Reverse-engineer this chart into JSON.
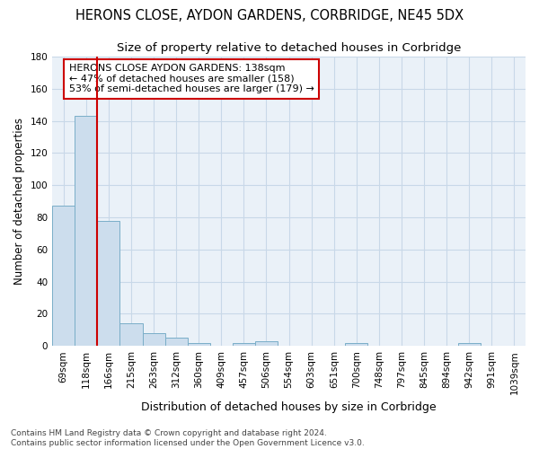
{
  "title": "HERONS CLOSE, AYDON GARDENS, CORBRIDGE, NE45 5DX",
  "subtitle": "Size of property relative to detached houses in Corbridge",
  "xlabel": "Distribution of detached houses by size in Corbridge",
  "ylabel": "Number of detached properties",
  "bar_labels": [
    "69sqm",
    "118sqm",
    "166sqm",
    "215sqm",
    "263sqm",
    "312sqm",
    "360sqm",
    "409sqm",
    "457sqm",
    "506sqm",
    "554sqm",
    "603sqm",
    "651sqm",
    "700sqm",
    "748sqm",
    "797sqm",
    "845sqm",
    "894sqm",
    "942sqm",
    "991sqm",
    "1039sqm"
  ],
  "bar_values": [
    87,
    143,
    78,
    14,
    8,
    5,
    2,
    0,
    2,
    3,
    0,
    0,
    0,
    2,
    0,
    0,
    0,
    0,
    2,
    0,
    0
  ],
  "bar_color": "#ccdded",
  "bar_edge_color": "#7aaec8",
  "grid_color": "#c8d8e8",
  "background_color": "#eaf1f8",
  "axes_background": "#eaf1f8",
  "fig_background": "#ffffff",
  "vline_color": "#cc0000",
  "vline_x_idx": 1.5,
  "annotation_text": "HERONS CLOSE AYDON GARDENS: 138sqm\n← 47% of detached houses are smaller (158)\n53% of semi-detached houses are larger (179) →",
  "annotation_box_facecolor": "#ffffff",
  "annotation_box_edgecolor": "#cc0000",
  "ylim": [
    0,
    180
  ],
  "yticks": [
    0,
    20,
    40,
    60,
    80,
    100,
    120,
    140,
    160,
    180
  ],
  "footer": "Contains HM Land Registry data © Crown copyright and database right 2024.\nContains public sector information licensed under the Open Government Licence v3.0.",
  "title_fontsize": 10.5,
  "subtitle_fontsize": 9.5,
  "xlabel_fontsize": 9,
  "ylabel_fontsize": 8.5,
  "tick_fontsize": 7.5,
  "annotation_fontsize": 8,
  "footer_fontsize": 6.5
}
